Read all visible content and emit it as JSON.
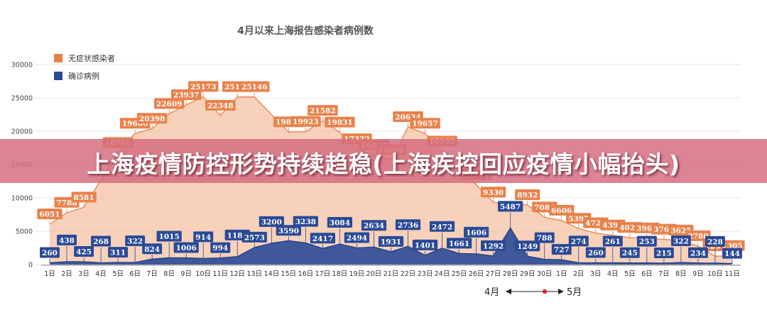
{
  "banner": {
    "text": "上海疫情防控形势持续趋稳(上海疾控回应疫情小幅抬头)"
  },
  "chart_data": {
    "type": "area",
    "title": "4月以来上海报告感染者病例数",
    "xlabel": "",
    "ylabel": "",
    "ylim": [
      0,
      30000
    ],
    "yticks": [
      0,
      5000,
      10000,
      15000,
      20000,
      25000,
      30000
    ],
    "grid": true,
    "legend_position": "top-left",
    "categories": [
      "1日",
      "2日",
      "3日",
      "4日",
      "5日",
      "6日",
      "7日",
      "8日",
      "9日",
      "10日",
      "11日",
      "12日",
      "13日",
      "14日",
      "15日",
      "16日",
      "17日",
      "18日",
      "19日",
      "20日",
      "21日",
      "22日",
      "23日",
      "24日",
      "25日",
      "26日",
      "27日",
      "28日",
      "29日",
      "30日",
      "1日",
      "2日",
      "3日",
      "4日",
      "5日",
      "6日",
      "7日",
      "8日",
      "9日",
      "10日",
      "11日"
    ],
    "month_markers": {
      "start": "4月",
      "end": "5月"
    },
    "series": [
      {
        "name": "无症状感染者",
        "color": "#e8824b",
        "values": [
          6051,
          7788,
          8581,
          null,
          16766,
          19660,
          20398,
          22609,
          23937,
          25173,
          22348,
          25141,
          25146,
          null,
          19872,
          19923,
          21582,
          19831,
          17332,
          16407,
          15698,
          20634,
          19657,
          16983,
          null,
          11956,
          9330,
          null,
          8932,
          7084,
          6606,
          5395,
          4722,
          4390,
          4024,
          3961,
          3760,
          3625,
          2780,
          1259,
          1305
        ]
      },
      {
        "name": "确诊病例",
        "color": "#2a4a96",
        "values": [
          260,
          438,
          425,
          268,
          311,
          322,
          824,
          1015,
          1006,
          914,
          994,
          1189,
          2573,
          3200,
          3590,
          3238,
          2417,
          3084,
          2494,
          2634,
          1931,
          2736,
          1401,
          2472,
          1661,
          1606,
          1292,
          5487,
          1249,
          788,
          727,
          274,
          260,
          261,
          245,
          253,
          215,
          322,
          234,
          228,
          144
        ]
      }
    ]
  }
}
